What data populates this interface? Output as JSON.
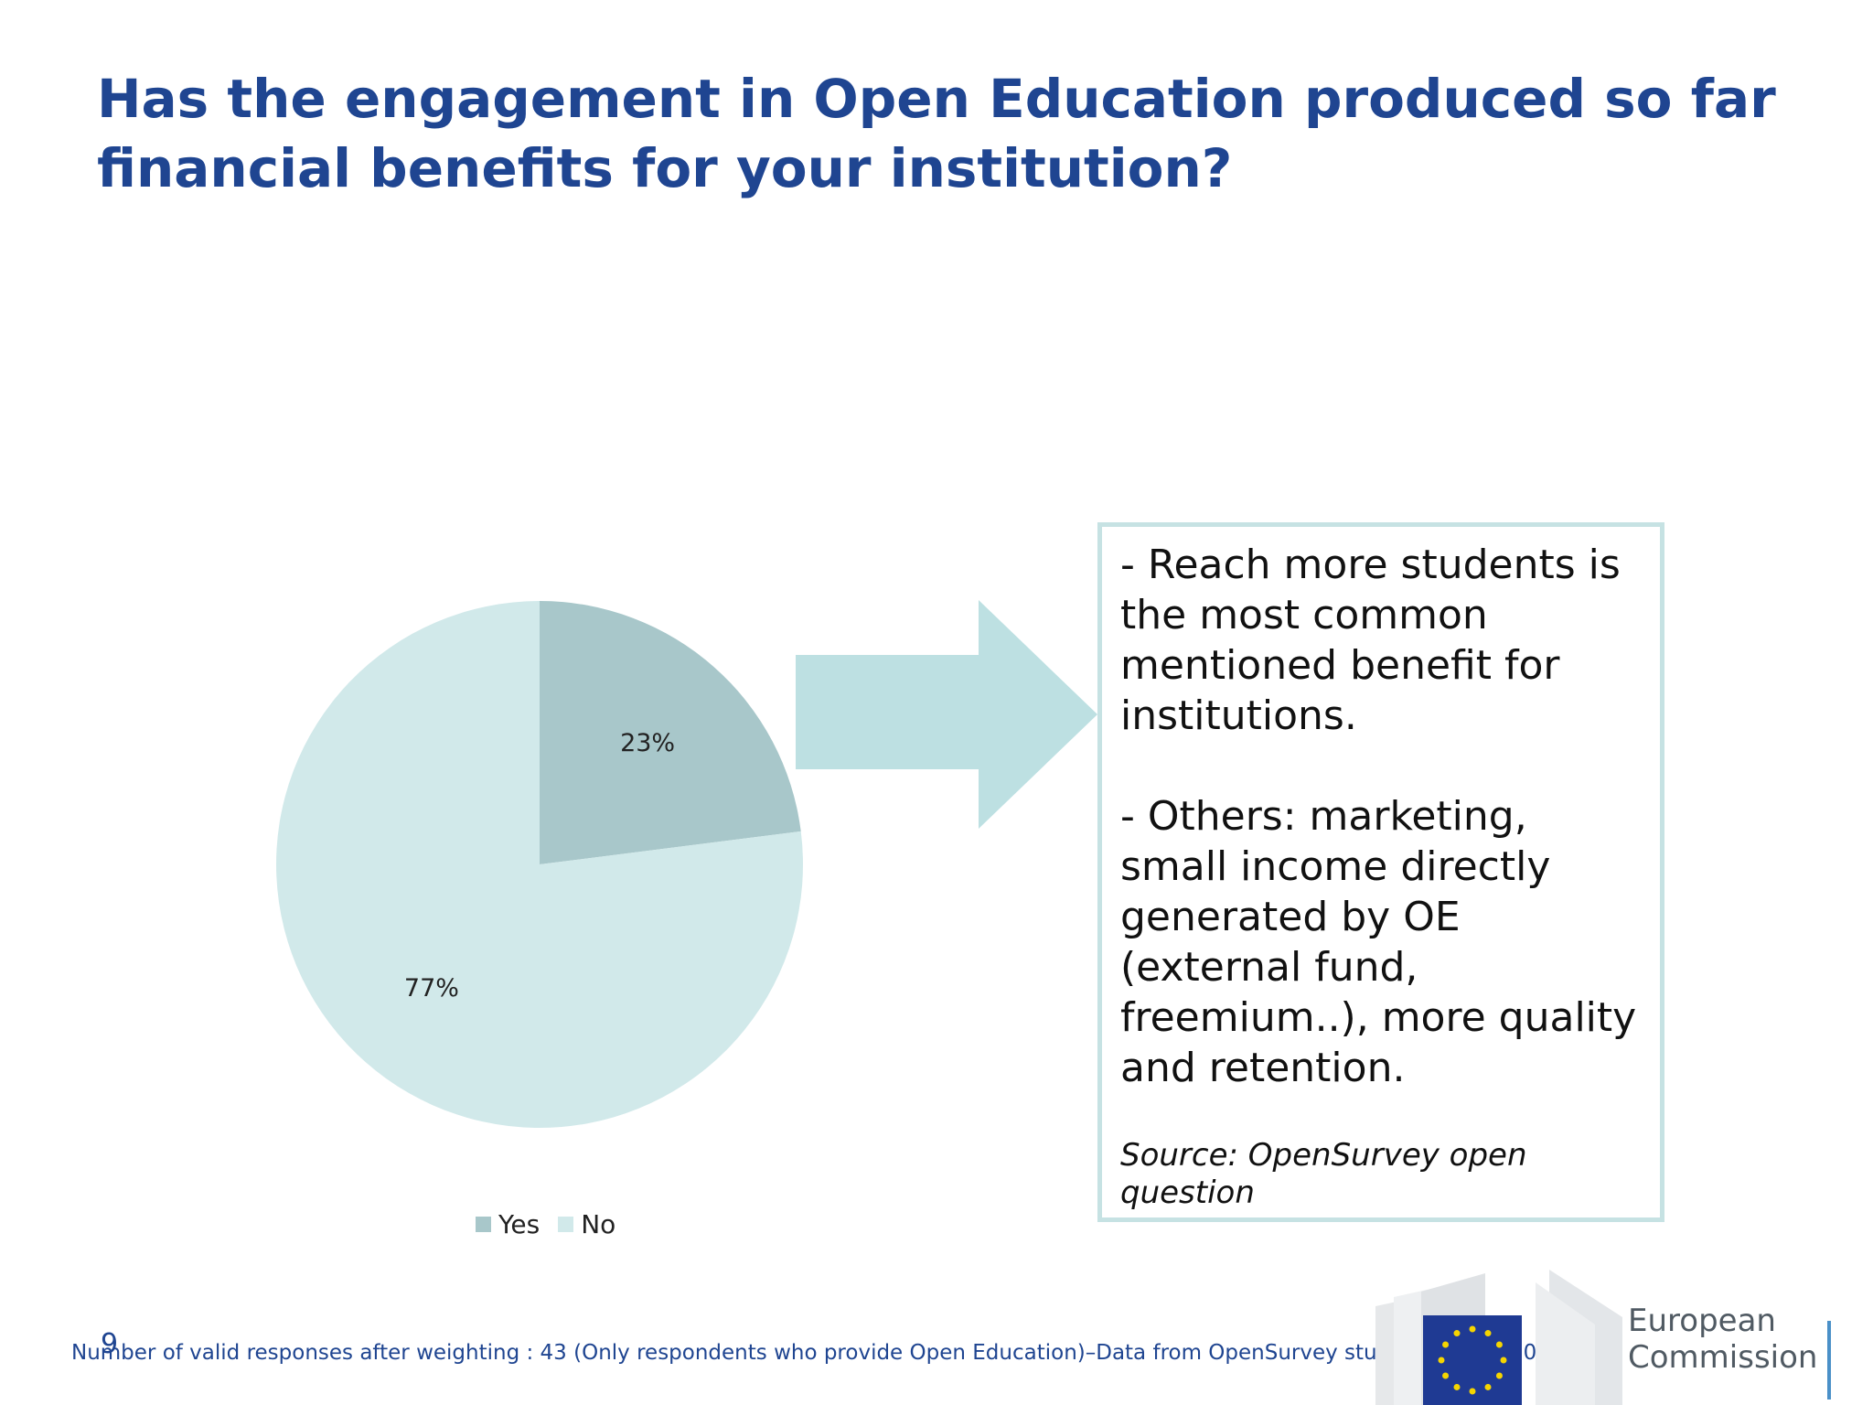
{
  "title": "Has the engagement in Open Education produced so far financial benefits for your institution?",
  "chart_data": {
    "type": "pie",
    "title": "",
    "categories": [
      "Yes",
      "No"
    ],
    "values": [
      23,
      77
    ],
    "labels": [
      "23%",
      "77%"
    ],
    "colors": [
      "#a8c7ca",
      "#d1e9ea"
    ],
    "legend": "bottom"
  },
  "note": {
    "line1": "- Reach more students is the most common mentioned benefit for institutions.",
    "line2": "- Others: marketing, small income directly generated by OE (external fund, freemium..), more quality and retention.",
    "source": "Source: OpenSurvey open question"
  },
  "colors": {
    "title": "#1f4591",
    "arrow": "#bde0e2",
    "box_border": "#c6e2e3"
  },
  "page_number": "9",
  "footnote": "Number of valid responses after weighting : 43 (Only respondents who provide Open Education)–Data from OpenSurvey study, JRC-IPTS 2015.",
  "logo": {
    "line1": "European",
    "line2": "Commission"
  }
}
